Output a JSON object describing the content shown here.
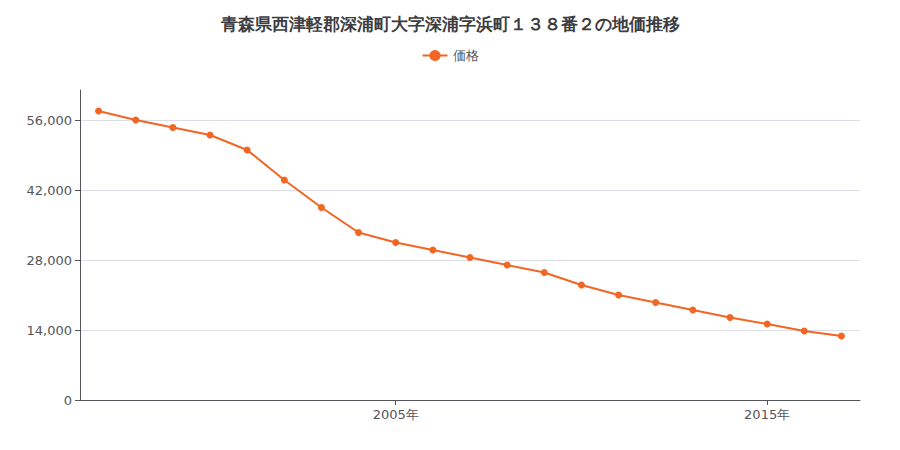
{
  "chart_data": {
    "type": "line",
    "title": "青森県西津軽郡深浦町大字深浦字浜町１３８番２の地価推移",
    "x": [
      1997,
      1998,
      1999,
      2000,
      2001,
      2002,
      2003,
      2004,
      2005,
      2006,
      2007,
      2008,
      2009,
      2010,
      2011,
      2012,
      2013,
      2014,
      2015,
      2016,
      2017
    ],
    "series": [
      {
        "name": "価格",
        "color": "#f26522",
        "values": [
          57800,
          56000,
          54500,
          53000,
          50000,
          44000,
          38500,
          33500,
          31500,
          30000,
          28500,
          27000,
          25500,
          23000,
          21000,
          19500,
          18000,
          16500,
          15200,
          13800,
          12800
        ]
      }
    ],
    "xlim": [
      1996.5,
      2017.5
    ],
    "xticks": [
      {
        "value": 2005,
        "label": "2005年"
      },
      {
        "value": 2015,
        "label": "2015年"
      }
    ],
    "ylim": [
      0,
      62000
    ],
    "yticks": [
      0,
      {
        "value": 14000,
        "label": "14,000"
      },
      {
        "value": 28000,
        "label": "28,000"
      },
      {
        "value": 42000,
        "label": "42,000"
      },
      {
        "value": 56000,
        "label": "56,000"
      }
    ],
    "grid": "y",
    "legend": "top",
    "marker": "circle"
  }
}
